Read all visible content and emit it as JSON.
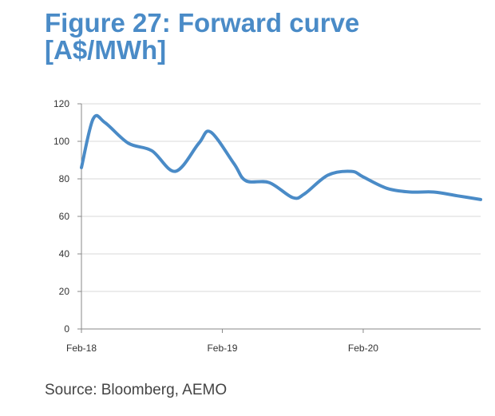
{
  "figure": {
    "title_line1": "Figure 27: Forward curve",
    "title_line2": "[A$/MWh]",
    "source": "Source: Bloomberg, AEMO"
  },
  "colors": {
    "title": "#4a8bc7",
    "line": "#4a8bc7",
    "grid": "#d9d9d9",
    "axis": "#888888"
  },
  "chart_data": {
    "type": "line",
    "title": "Figure 27: Forward curve [A$/MWh]",
    "xlabel": "",
    "ylabel": "",
    "ylim": [
      0,
      120
    ],
    "yticks": [
      0,
      20,
      40,
      60,
      80,
      100,
      120
    ],
    "xlim": [
      "2018-02",
      "2020-12"
    ],
    "xticks": [
      {
        "label": "Feb-18",
        "x": "2018-02"
      },
      {
        "label": "Feb-19",
        "x": "2019-02"
      },
      {
        "label": "Feb-20",
        "x": "2020-02"
      }
    ],
    "grid": "horizontal",
    "series": [
      {
        "values": [
          {
            "x": "2018-02",
            "y": 86
          },
          {
            "x": "2018-03",
            "y": 112
          },
          {
            "x": "2018-04",
            "y": 110
          },
          {
            "x": "2018-06",
            "y": 99
          },
          {
            "x": "2018-08",
            "y": 95
          },
          {
            "x": "2018-10",
            "y": 84
          },
          {
            "x": "2018-12",
            "y": 99
          },
          {
            "x": "2019-01",
            "y": 105
          },
          {
            "x": "2019-03",
            "y": 88
          },
          {
            "x": "2019-04",
            "y": 79
          },
          {
            "x": "2019-06",
            "y": 78
          },
          {
            "x": "2019-08",
            "y": 70
          },
          {
            "x": "2019-09",
            "y": 72
          },
          {
            "x": "2019-11",
            "y": 82
          },
          {
            "x": "2020-01",
            "y": 84
          },
          {
            "x": "2020-02",
            "y": 81
          },
          {
            "x": "2020-04",
            "y": 75
          },
          {
            "x": "2020-06",
            "y": 73
          },
          {
            "x": "2020-08",
            "y": 73
          },
          {
            "x": "2020-10",
            "y": 71
          },
          {
            "x": "2020-12",
            "y": 69
          }
        ]
      }
    ]
  }
}
